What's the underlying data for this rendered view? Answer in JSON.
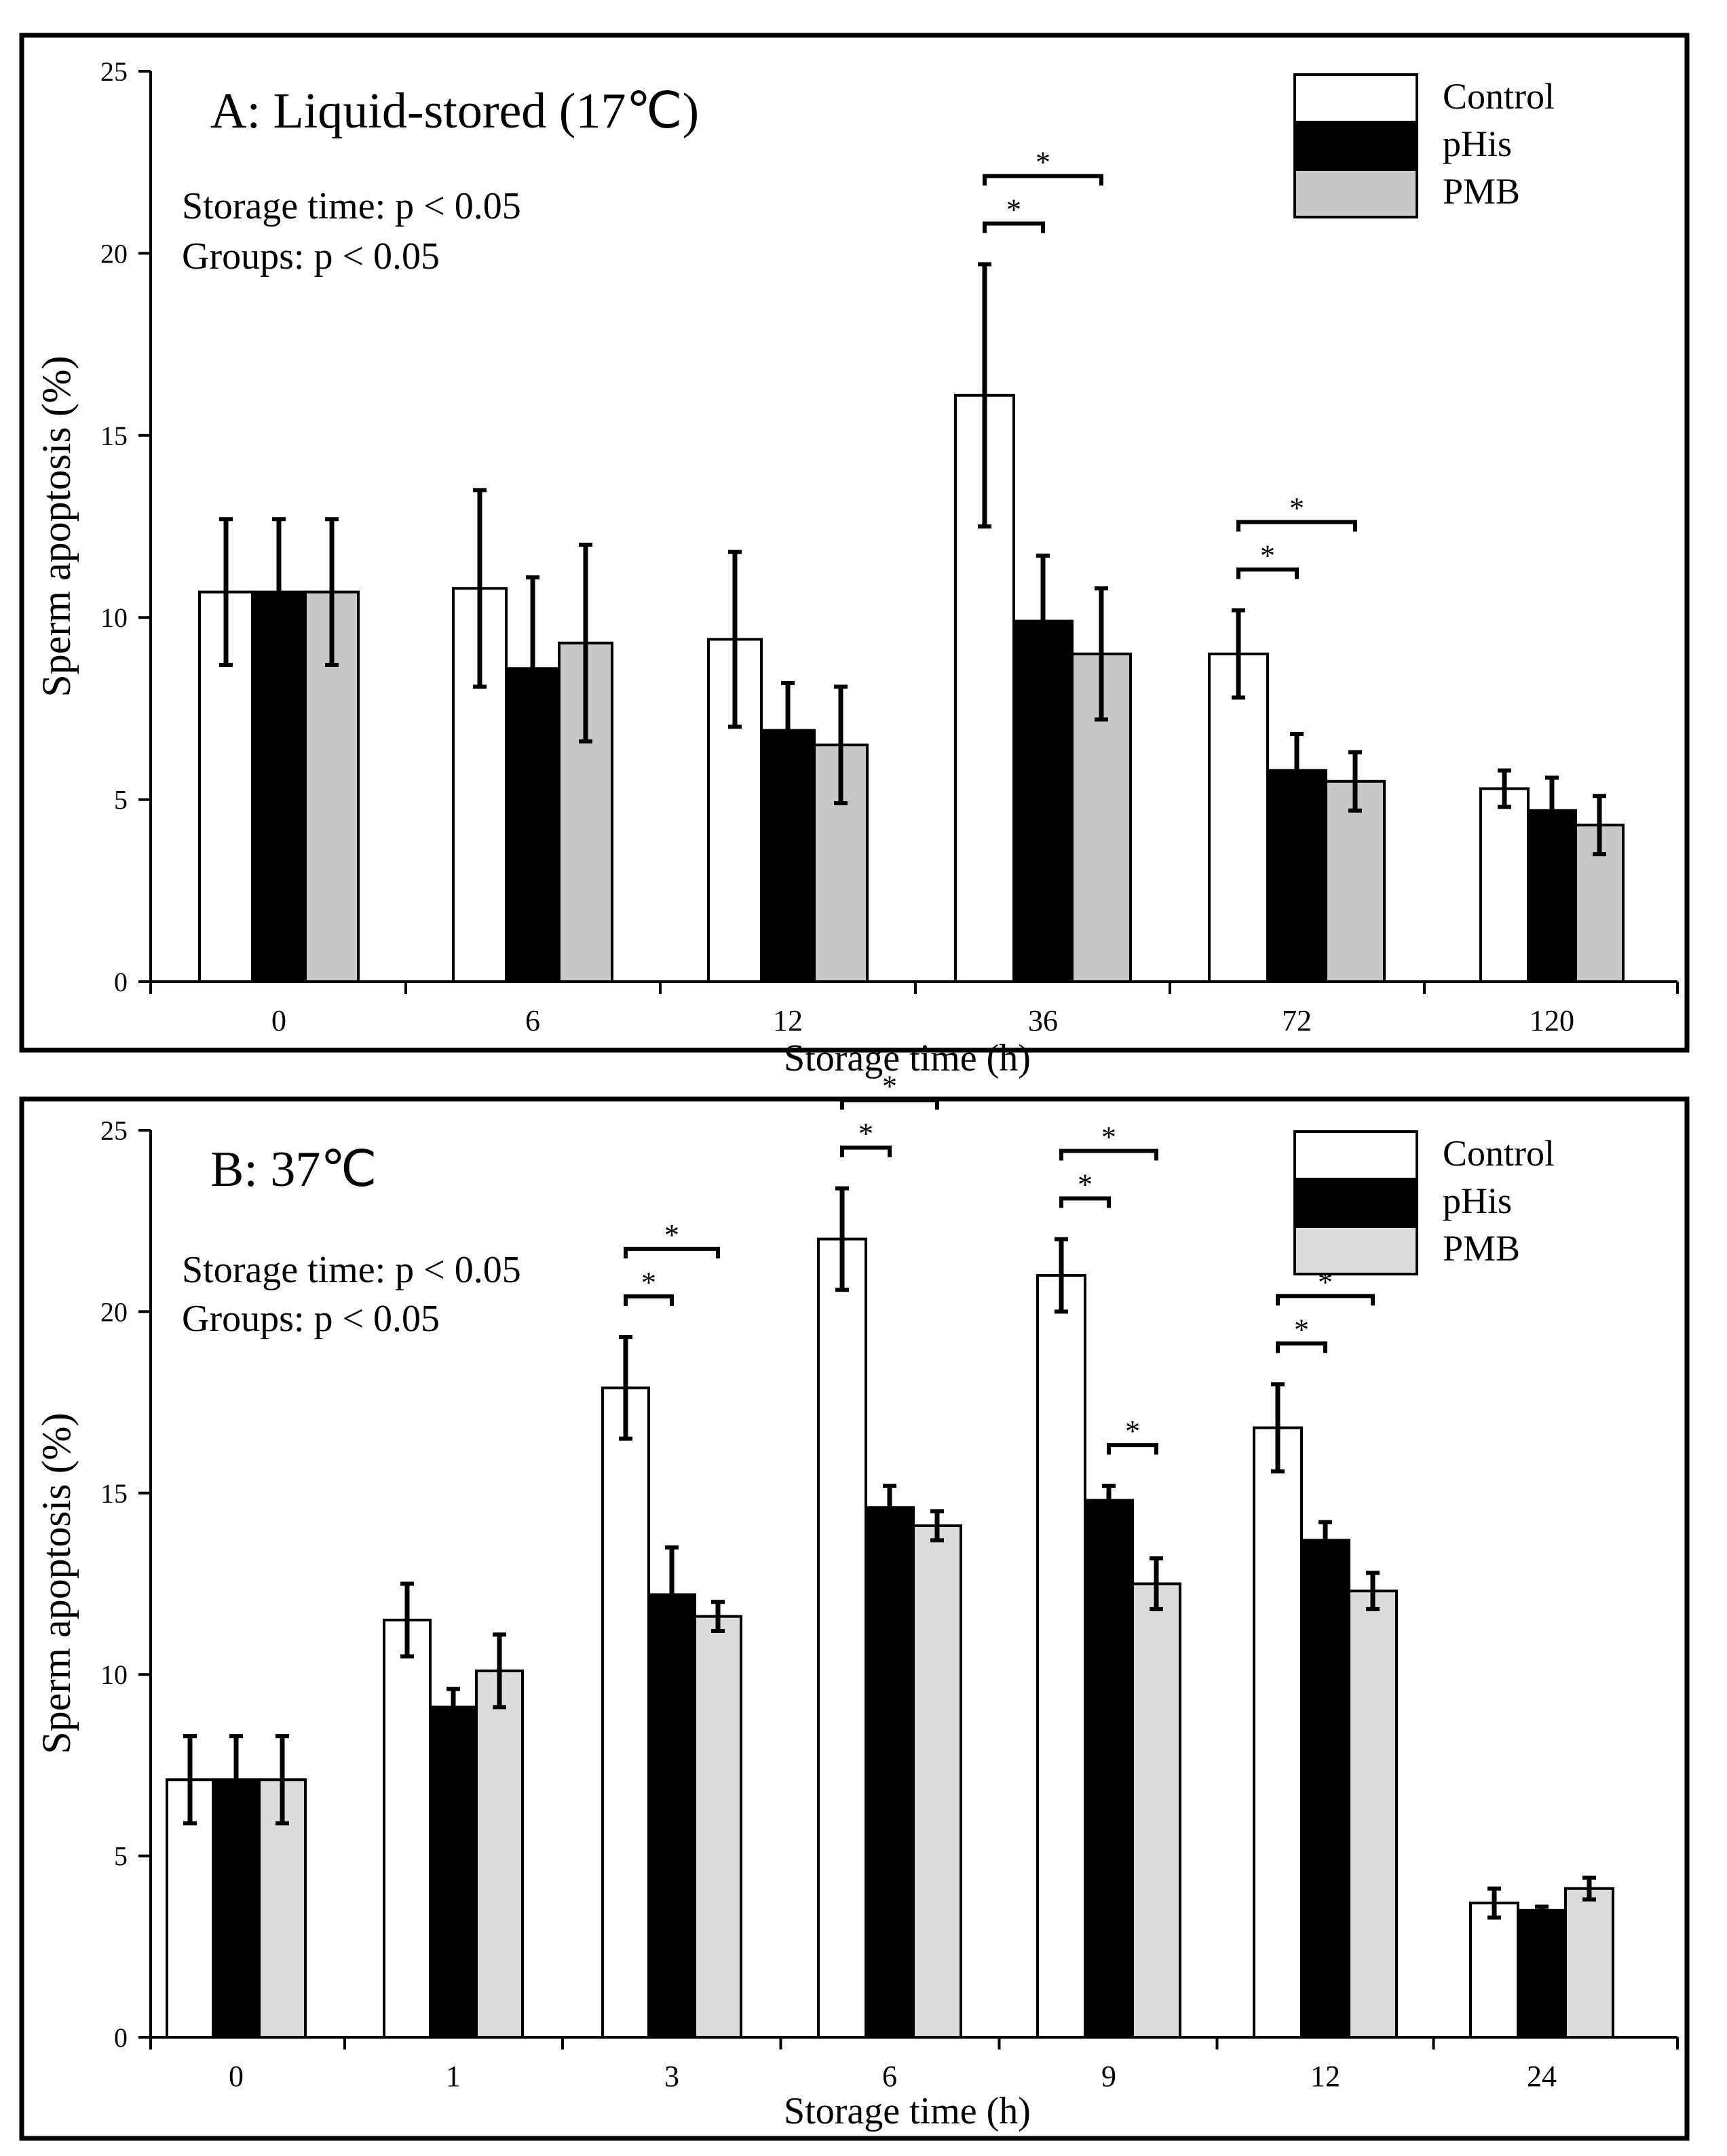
{
  "legend_labels": [
    "Control",
    "pHis",
    "PMB"
  ],
  "colors": {
    "Control": "#ffffff",
    "pHis": "#000000",
    "PMB": "#c8c8c8",
    "PMB_b": "#dcdcdc"
  },
  "chart_data": [
    {
      "type": "bar",
      "title": "A: Liquid-stored (17℃)",
      "stats": [
        "Storage time: p < 0.05",
        "Groups: p < 0.05"
      ],
      "xlabel": "Storage time (h)",
      "ylabel": "Sperm apoptosis (%)",
      "ylim": [
        0,
        25
      ],
      "yticks": [
        0,
        5,
        10,
        15,
        20,
        25
      ],
      "categories": [
        "0",
        "6",
        "12",
        "36",
        "72",
        "120"
      ],
      "series": [
        {
          "name": "Control",
          "values": [
            10.7,
            10.8,
            9.4,
            16.1,
            9.0,
            5.3
          ],
          "errors": [
            2.0,
            2.7,
            2.4,
            3.6,
            1.2,
            0.5
          ]
        },
        {
          "name": "pHis",
          "values": [
            10.7,
            8.6,
            6.9,
            9.9,
            5.8,
            4.7
          ],
          "errors": [
            2.0,
            2.5,
            1.3,
            1.8,
            1.0,
            0.9
          ]
        },
        {
          "name": "PMB",
          "values": [
            10.7,
            9.3,
            6.5,
            9.0,
            5.5,
            4.3
          ],
          "errors": [
            2.0,
            2.7,
            1.6,
            1.8,
            0.8,
            0.8
          ]
        }
      ],
      "significance": [
        {
          "category": 3,
          "from": 0,
          "to": 2,
          "label": "*"
        },
        {
          "category": 3,
          "from": 0,
          "to": 1,
          "label": "*"
        },
        {
          "category": 4,
          "from": 0,
          "to": 2,
          "label": "*"
        },
        {
          "category": 4,
          "from": 0,
          "to": 1,
          "label": "*"
        }
      ],
      "legend_position": "top-right"
    },
    {
      "type": "bar",
      "title": "B: 37℃",
      "stats": [
        "Storage time: p < 0.05",
        "Groups: p < 0.05"
      ],
      "xlabel": "Storage time (h)",
      "ylabel": "Sperm apoptosis (%)",
      "ylim": [
        0,
        25
      ],
      "yticks": [
        0,
        5,
        10,
        15,
        20,
        25
      ],
      "categories": [
        "0",
        "1",
        "3",
        "6",
        "9",
        "12",
        "24"
      ],
      "series": [
        {
          "name": "Control",
          "values": [
            7.1,
            11.5,
            17.9,
            22.0,
            21.0,
            16.8,
            3.7
          ],
          "errors": [
            1.2,
            1.0,
            1.4,
            1.4,
            1.0,
            1.2,
            0.4
          ]
        },
        {
          "name": "pHis",
          "values": [
            7.1,
            9.1,
            12.2,
            14.6,
            14.8,
            13.7,
            3.5
          ],
          "errors": [
            1.2,
            0.5,
            1.3,
            0.6,
            0.4,
            0.5,
            0.1
          ]
        },
        {
          "name": "PMB",
          "values": [
            7.1,
            10.1,
            11.6,
            14.1,
            12.5,
            12.3,
            4.1
          ],
          "errors": [
            1.2,
            1.0,
            0.4,
            0.4,
            0.7,
            0.5,
            0.3
          ]
        }
      ],
      "significance": [
        {
          "category": 2,
          "from": 0,
          "to": 2,
          "label": "*"
        },
        {
          "category": 2,
          "from": 0,
          "to": 1,
          "label": "*"
        },
        {
          "category": 3,
          "from": 0,
          "to": 2,
          "label": "*"
        },
        {
          "category": 3,
          "from": 0,
          "to": 1,
          "label": "*"
        },
        {
          "category": 4,
          "from": 0,
          "to": 2,
          "label": "*"
        },
        {
          "category": 4,
          "from": 0,
          "to": 1,
          "label": "*"
        },
        {
          "category": 4,
          "from": 1,
          "to": 2,
          "label": "*"
        },
        {
          "category": 5,
          "from": 0,
          "to": 2,
          "label": "*"
        },
        {
          "category": 5,
          "from": 0,
          "to": 1,
          "label": "*"
        }
      ],
      "legend_position": "top-right"
    }
  ]
}
